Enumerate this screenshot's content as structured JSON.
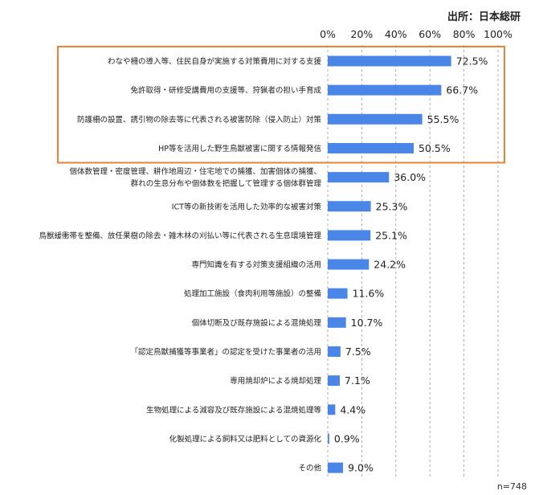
{
  "source": "出所：日本総研",
  "sample_size": "n=748",
  "chart_data": {
    "type": "bar",
    "orientation": "horizontal",
    "xlim": [
      0,
      100
    ],
    "x_ticks": [
      "0%",
      "20%",
      "40%",
      "60%",
      "80%",
      "100%"
    ],
    "grid": "vertical dashed",
    "categories": [
      [
        "わなや柵の導入等、住民自身が実施する対策費用に対する支援"
      ],
      [
        "免許取得・研修受講費用の支援等、狩猟者の担い手育成"
      ],
      [
        "防護柵の設置、誘引物の除去等に代表される被害防除（侵入防止）対策"
      ],
      [
        "HP等を活用した野生鳥獣被害に関する情報発信"
      ],
      [
        "個体数管理・密度管理、耕作地周辺・住宅地での捕獲、加害個体の捕獲、",
        "群れの生息分布や個体数を把握して管理する個体群管理"
      ],
      [
        "ICT等の新技術を活用した効率的な被害対策"
      ],
      [
        "鳥獣緩衝帯を整備、放任果樹の除去・雑木林の刈払い等に代表される生息環境管理"
      ],
      [
        "専門知識を有する対策支援組織の活用"
      ],
      [
        "処理加工施設（食肉利用等施設）の整備"
      ],
      [
        "個体切断及び既存施設による混焼処理"
      ],
      [
        "「認定鳥獣捕獲等事業者」の認定を受けた事業者の活用"
      ],
      [
        "専用焼却炉による焼却処理"
      ],
      [
        "生物処理による減容及び既存施設による混焼処理等"
      ],
      [
        "化製処理による飼料又は肥料としての資源化"
      ],
      [
        "その他"
      ]
    ],
    "values": [
      72.5,
      66.7,
      55.5,
      50.5,
      36.0,
      25.3,
      25.1,
      24.2,
      11.6,
      10.7,
      7.5,
      7.1,
      4.4,
      0.9,
      9.0
    ],
    "value_labels": [
      "72.5%",
      "66.7%",
      "55.5%",
      "50.5%",
      "36.0%",
      "25.3%",
      "25.1%",
      "24.2%",
      "11.6%",
      "10.7%",
      "7.5%",
      "7.1%",
      "4.4%",
      "0.9%",
      "9.0%"
    ],
    "highlight": {
      "first_index": 0,
      "last_index": 3
    }
  },
  "colors": {
    "bar": "#4a86e8",
    "highlight_box": "#e8813a",
    "grid": "#9a9a9a",
    "text": "#222222"
  }
}
